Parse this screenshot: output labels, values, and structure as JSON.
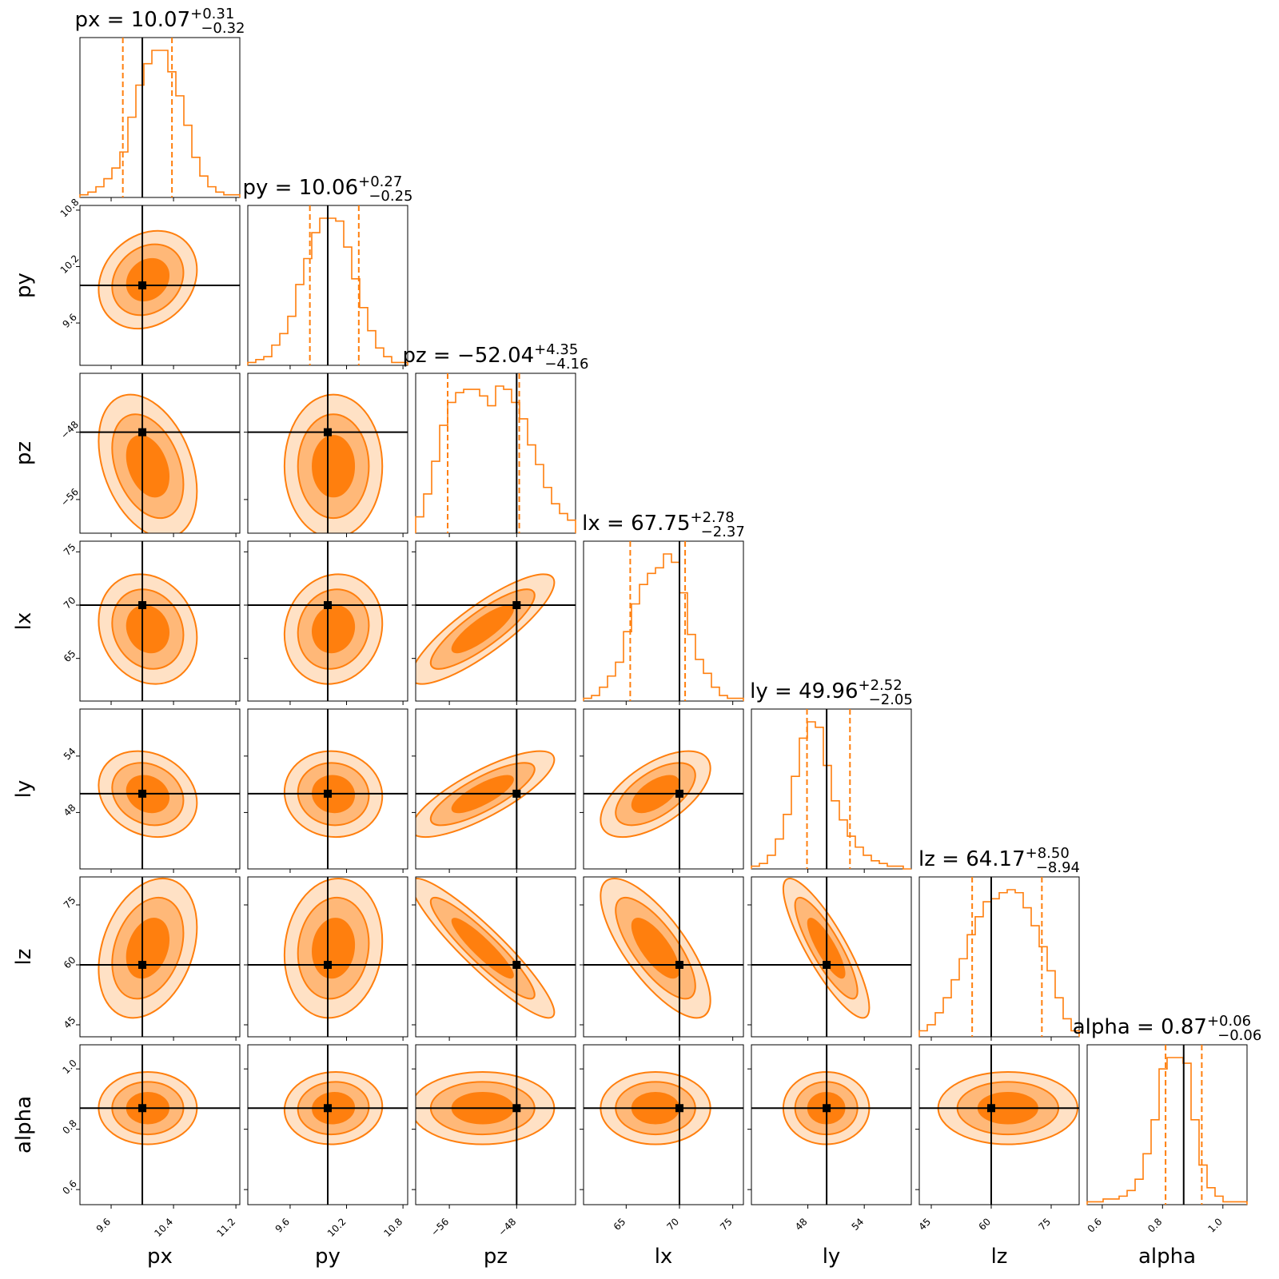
{
  "chart_data": {
    "type": "corner",
    "parameters": [
      {
        "name": "px",
        "label": "px",
        "range": [
          9.2,
          11.25
        ],
        "ticks": [
          "9.6",
          "10.4",
          "11.2"
        ],
        "tick_values": [
          9.6,
          10.4,
          11.2
        ],
        "median": "10.07",
        "plus": "+0.31",
        "minus": "−0.32",
        "median_value": 10.07,
        "q16": 9.75,
        "q84": 10.38,
        "truth": 10.0,
        "hist": [
          1,
          2,
          4,
          7,
          11,
          17,
          30,
          42,
          50,
          55,
          55,
          47,
          38,
          27,
          15,
          8,
          4,
          2,
          1,
          1
        ],
        "hist_range": [
          9.2,
          11.25
        ]
      },
      {
        "name": "py",
        "label": "py",
        "range": [
          9.15,
          10.85
        ],
        "ticks": [
          "9.6",
          "10.2",
          "10.8"
        ],
        "tick_values": [
          9.6,
          10.2,
          10.8
        ],
        "median": "10.06",
        "plus": "+0.27",
        "minus": "−0.25",
        "median_value": 10.06,
        "q16": 9.81,
        "q84": 10.33,
        "truth": 10.0,
        "hist": [
          1,
          2,
          3,
          7,
          11,
          17,
          28,
          37,
          46,
          51,
          51,
          50,
          41,
          30,
          20,
          12,
          6,
          3,
          1,
          1
        ],
        "hist_range": [
          9.15,
          10.85
        ]
      },
      {
        "name": "pz",
        "label": "pz",
        "range": [
          -60,
          -41
        ],
        "ticks": [
          "−56",
          "−48"
        ],
        "tick_values": [
          -56,
          -48
        ],
        "median": "−52.04",
        "plus": "+4.35",
        "minus": "−4.16",
        "median_value": -52.04,
        "q16": -56.2,
        "q84": -47.69,
        "truth": -48.0,
        "hist": [
          5,
          12,
          22,
          33,
          40,
          43,
          44,
          44,
          42,
          39,
          45,
          44,
          40,
          35,
          27,
          21,
          14,
          9,
          6,
          4
        ],
        "hist_range": [
          -60,
          -41
        ]
      },
      {
        "name": "lx",
        "label": "lx",
        "range": [
          61,
          76
        ],
        "ticks": [
          "65",
          "70",
          "75"
        ],
        "tick_values": [
          65,
          70,
          75
        ],
        "median": "67.75",
        "plus": "+2.78",
        "minus": "−2.37",
        "median_value": 67.75,
        "q16": 65.38,
        "q84": 70.53,
        "truth": 70.0,
        "hist": [
          1,
          2,
          5,
          9,
          14,
          25,
          35,
          42,
          46,
          48,
          53,
          50,
          39,
          24,
          15,
          10,
          5,
          2,
          1,
          1
        ],
        "hist_range": [
          61,
          76
        ]
      },
      {
        "name": "ly",
        "label": "ly",
        "range": [
          42,
          59
        ],
        "ticks": [
          "48",
          "54"
        ],
        "tick_values": [
          48,
          54
        ],
        "median": "49.96",
        "plus": "+2.52",
        "minus": "−2.05",
        "median_value": 49.96,
        "q16": 47.91,
        "q84": 52.48,
        "truth": 50.0,
        "hist": [
          1,
          2,
          5,
          11,
          20,
          34,
          48,
          54,
          52,
          38,
          25,
          18,
          12,
          8,
          5,
          3,
          2,
          1,
          1,
          0
        ],
        "hist_range": [
          42,
          59
        ]
      },
      {
        "name": "lz",
        "label": "lz",
        "range": [
          42,
          82
        ],
        "ticks": [
          "45",
          "60",
          "75"
        ],
        "tick_values": [
          45,
          60,
          75
        ],
        "median": "64.17",
        "plus": "+8.50",
        "minus": "−8.94",
        "median_value": 64.17,
        "q16": 55.23,
        "q84": 72.67,
        "truth": 60.0,
        "hist": [
          2,
          4,
          8,
          13,
          19,
          26,
          34,
          40,
          45,
          46,
          48,
          49,
          48,
          43,
          37,
          30,
          22,
          13,
          6,
          2
        ],
        "hist_range": [
          42,
          82
        ]
      },
      {
        "name": "alpha",
        "label": "alpha",
        "range": [
          0.55,
          1.08
        ],
        "ticks": [
          "0.6",
          "0.8",
          "1.0"
        ],
        "tick_values": [
          0.6,
          0.8,
          1.0
        ],
        "median": "0.87",
        "plus": "+0.06",
        "minus": "−0.06",
        "median_value": 0.87,
        "q16": 0.81,
        "q84": 0.93,
        "truth": 0.87,
        "hist": [
          1,
          1,
          2,
          2,
          3,
          5,
          9,
          18,
          30,
          48,
          52,
          52,
          50,
          30,
          14,
          6,
          3,
          1,
          1,
          1
        ],
        "hist_range": [
          0.55,
          1.08
        ]
      }
    ],
    "correlations": {
      "1-0": 0.2,
      "2-0": -0.35,
      "2-1": 0.0,
      "3-0": -0.15,
      "3-1": 0.1,
      "3-2": 0.85,
      "4-0": -0.2,
      "4-1": -0.05,
      "4-2": 0.8,
      "4-3": 0.6,
      "5-0": 0.3,
      "5-1": 0.1,
      "5-2": -0.92,
      "5-3": -0.75,
      "5-4": -0.85,
      "6-0": 0.0,
      "6-1": 0.05,
      "6-2": 0.0,
      "6-3": 0.0,
      "6-4": 0.0,
      "6-5": 0.0
    },
    "sigma_levels": [
      0.5,
      1.0,
      1.5
    ],
    "colors": {
      "contour": "#ff7f0e",
      "fill_levels": [
        "#ffe1c5",
        "#ffb878",
        "#ff7f0e"
      ],
      "truth": "#000000",
      "quantile": "#ff7f0e",
      "hist": "#ff7f0e"
    }
  }
}
